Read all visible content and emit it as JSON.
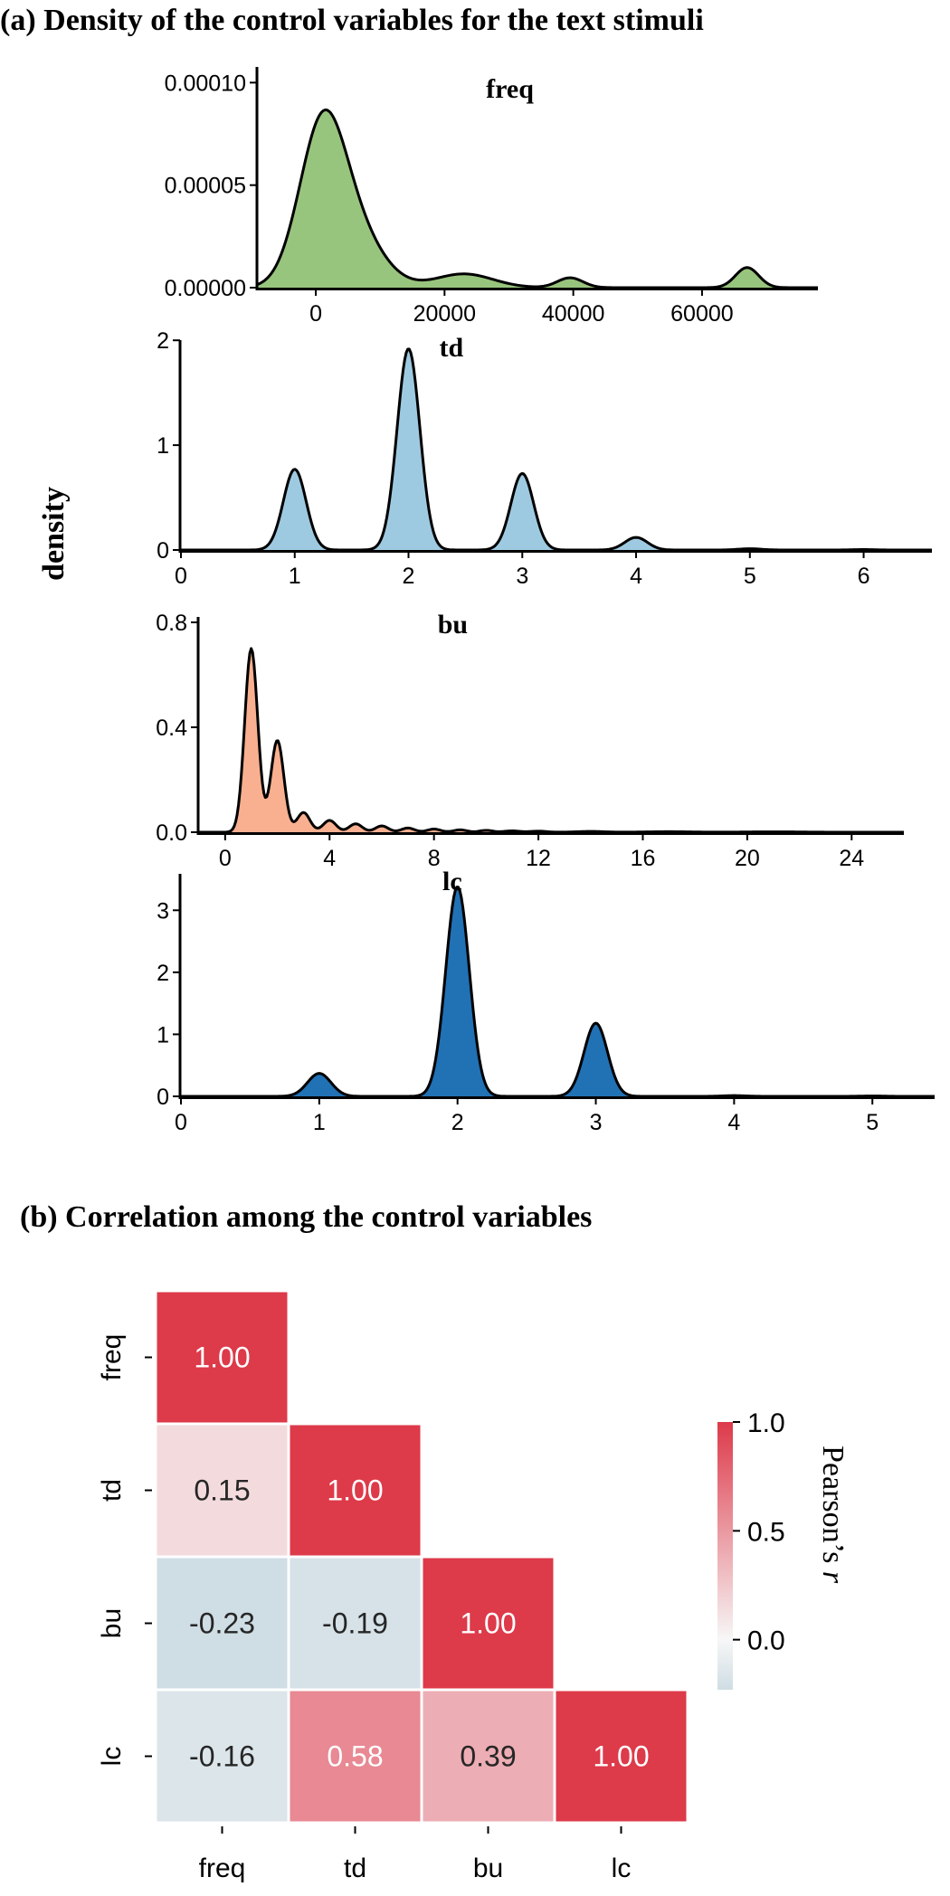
{
  "figure": {
    "title_a": "(a) Density of the control variables for the text stimuli",
    "title_b": "(b) Correlation among the control variables",
    "ylabel_a": "density"
  },
  "chart_data": [
    {
      "type": "area",
      "title": "freq",
      "color": "#98c57d",
      "xlim": [
        -9000,
        78000
      ],
      "ylim": [
        0,
        0.000105
      ],
      "xticks": [
        0,
        20000,
        40000,
        60000
      ],
      "xtick_labels": [
        "0",
        "20000",
        "40000",
        "60000"
      ],
      "yticks": [
        0,
        5e-05,
        0.0001
      ],
      "ytick_labels": [
        "0.00000",
        "0.00005",
        "0.00010"
      ],
      "peaks": [
        {
          "center": 1000,
          "sigma": 3600,
          "height": 7.62e-05
        },
        {
          "center": 6500,
          "sigma": 4200,
          "height": 2.28e-05
        },
        {
          "center": 23000,
          "sigma": 4500,
          "height": 6.7e-06
        },
        {
          "center": 39500,
          "sigma": 2000,
          "height": 4.8e-06
        },
        {
          "center": 67000,
          "sigma": 1800,
          "height": 9.8e-06
        }
      ]
    },
    {
      "type": "area",
      "title": "td",
      "color": "#9ecae1",
      "xlim": [
        0,
        6.6
      ],
      "ylim": [
        0,
        1.95
      ],
      "xticks": [
        0,
        1,
        2,
        3,
        4,
        5,
        6
      ],
      "xtick_labels": [
        "0",
        "1",
        "2",
        "3",
        "4",
        "5",
        "6"
      ],
      "yticks": [
        0,
        1,
        2
      ],
      "ytick_labels": [
        "0",
        "1",
        "2"
      ],
      "peaks": [
        {
          "center": 1,
          "sigma": 0.1,
          "height": 0.77
        },
        {
          "center": 2,
          "sigma": 0.1,
          "height": 1.92
        },
        {
          "center": 3,
          "sigma": 0.1,
          "height": 0.73
        },
        {
          "center": 4,
          "sigma": 0.1,
          "height": 0.12
        },
        {
          "center": 5,
          "sigma": 0.1,
          "height": 0.012
        },
        {
          "center": 6,
          "sigma": 0.1,
          "height": 0.004
        }
      ]
    },
    {
      "type": "area",
      "title": "bu",
      "color": "#f9b090",
      "xlim": [
        -1,
        26
      ],
      "ylim": [
        0,
        0.8
      ],
      "xticks": [
        0,
        4,
        8,
        12,
        16,
        20,
        24
      ],
      "xtick_labels": [
        "0",
        "4",
        "8",
        "12",
        "16",
        "20",
        "24"
      ],
      "yticks": [
        0,
        0.4,
        0.8
      ],
      "ytick_labels": [
        "0.0",
        "0.4",
        "0.8"
      ],
      "peaks": [
        {
          "center": 1,
          "sigma": 0.25,
          "height": 0.7
        },
        {
          "center": 2,
          "sigma": 0.25,
          "height": 0.35
        },
        {
          "center": 3,
          "sigma": 0.25,
          "height": 0.075
        },
        {
          "center": 4,
          "sigma": 0.25,
          "height": 0.045
        },
        {
          "center": 5,
          "sigma": 0.25,
          "height": 0.032
        },
        {
          "center": 6,
          "sigma": 0.25,
          "height": 0.024
        },
        {
          "center": 7,
          "sigma": 0.25,
          "height": 0.016
        },
        {
          "center": 8,
          "sigma": 0.25,
          "height": 0.012
        },
        {
          "center": 9,
          "sigma": 0.25,
          "height": 0.009
        },
        {
          "center": 10,
          "sigma": 0.25,
          "height": 0.007
        },
        {
          "center": 11,
          "sigma": 0.3,
          "height": 0.005
        },
        {
          "center": 12,
          "sigma": 0.3,
          "height": 0.004
        },
        {
          "center": 14,
          "sigma": 0.5,
          "height": 0.003
        },
        {
          "center": 17,
          "sigma": 0.8,
          "height": 0.002
        },
        {
          "center": 21,
          "sigma": 1.0,
          "height": 0.0015
        }
      ]
    },
    {
      "type": "area",
      "title": "lc",
      "color": "#2171b5",
      "xlim": [
        0,
        5.45
      ],
      "ylim": [
        0,
        3.5
      ],
      "xticks": [
        0,
        1,
        2,
        3,
        4,
        5
      ],
      "xtick_labels": [
        "0",
        "1",
        "2",
        "3",
        "4",
        "5"
      ],
      "yticks": [
        0,
        1,
        2,
        3
      ],
      "ytick_labels": [
        "0",
        "1",
        "2",
        "3"
      ],
      "peaks": [
        {
          "center": 1,
          "sigma": 0.085,
          "height": 0.37
        },
        {
          "center": 2,
          "sigma": 0.085,
          "height": 3.38
        },
        {
          "center": 3,
          "sigma": 0.085,
          "height": 1.18
        },
        {
          "center": 4,
          "sigma": 0.085,
          "height": 0.012
        },
        {
          "center": 5,
          "sigma": 0.085,
          "height": 0.006
        }
      ]
    },
    {
      "type": "heatmap",
      "variables": [
        "freq",
        "td",
        "bu",
        "lc"
      ],
      "lower_triangle": [
        [
          1.0
        ],
        [
          0.15,
          1.0
        ],
        [
          -0.23,
          -0.19,
          1.0
        ],
        [
          -0.16,
          0.58,
          0.39,
          1.0
        ]
      ],
      "cell_labels": [
        [
          "1.00"
        ],
        [
          "0.15",
          "1.00"
        ],
        [
          "-0.23",
          "-0.19",
          "1.00"
        ],
        [
          "-0.16",
          "0.58",
          "0.39",
          "1.00"
        ]
      ],
      "colorbar": {
        "label": "Pearson’s r",
        "vmin": -0.23,
        "vmax": 1.0,
        "ticks": [
          1.0,
          0.5,
          0.0
        ],
        "tick_labels": [
          "1.0",
          "0.5",
          "0.0"
        ],
        "neg_color": "#cfdde4",
        "mid_color": "#f7f7f7",
        "pos_color": "#dd3a4a"
      }
    }
  ]
}
